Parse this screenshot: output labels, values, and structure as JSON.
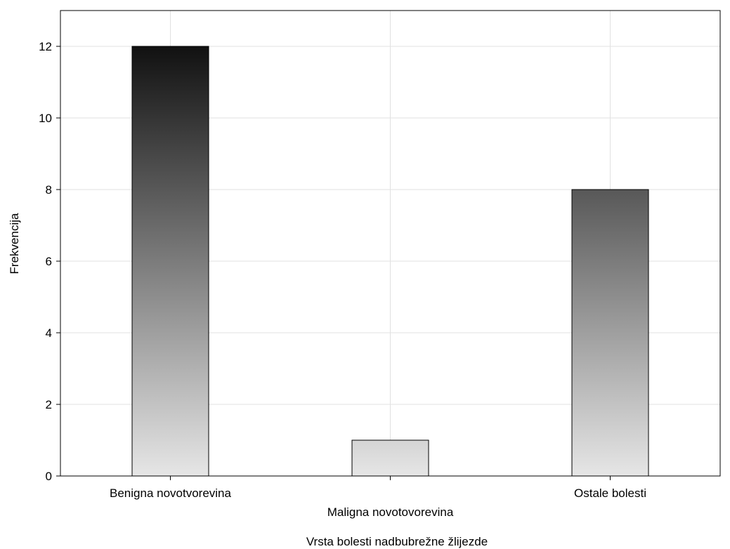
{
  "chart_data": {
    "type": "bar",
    "categories": [
      "Benigna novotvorevina",
      "Maligna novotovorevina",
      "Ostale bolesti"
    ],
    "values": [
      12,
      1,
      8
    ],
    "title": "",
    "xlabel": "Vrsta bolesti nadbubrežne žlijezde",
    "ylabel": "Frekvencija",
    "ylim": [
      0,
      13
    ],
    "yticks": [
      0,
      2,
      4,
      6,
      8,
      10,
      12
    ],
    "grid": true,
    "bar_fill": {
      "top_color": "#111111",
      "bottom_color": "#e6e6e6",
      "gradient_scale_max": 12
    },
    "gridline_color": "#e1e1e1",
    "axis_color": "#000000"
  }
}
